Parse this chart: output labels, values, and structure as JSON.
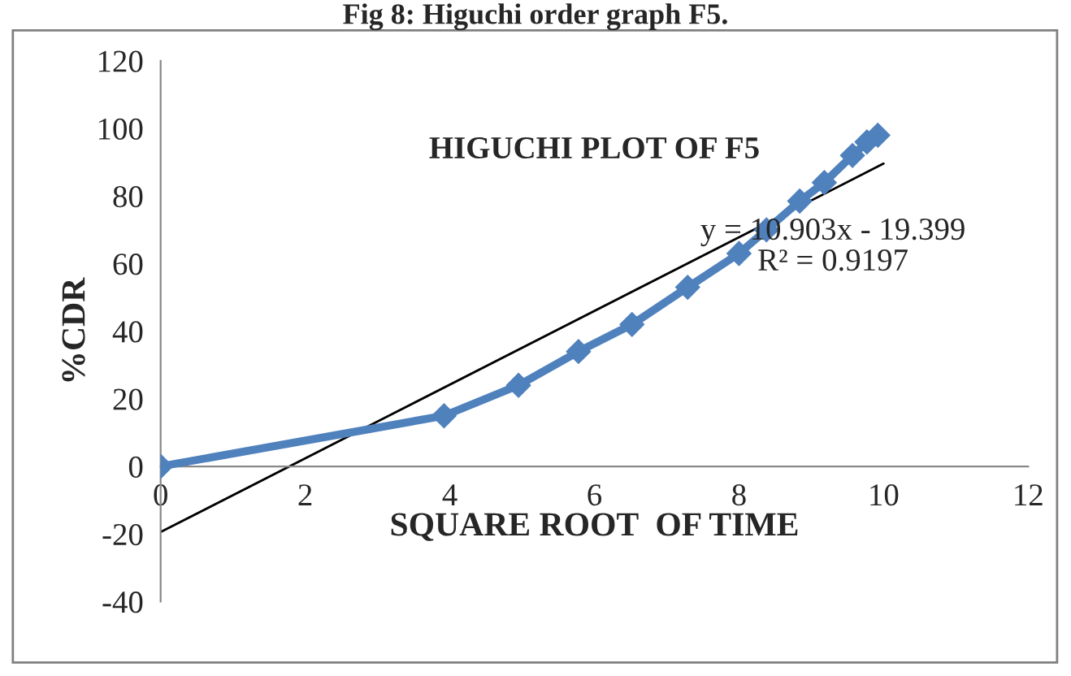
{
  "chart_data": {
    "type": "line",
    "title": "HIGUCHI PLOT OF F5",
    "xlabel": "SQUARE ROOT  OF TIME",
    "ylabel": "%CDR",
    "annotations": [
      "Fig 8: Higuchi order graph F5.",
      "y = 10.903x - 19.399\nR² = 0.9197"
    ],
    "series": [
      {
        "color": "#4f81bd",
        "marker": "diamond",
        "x": [
          0,
          3.92,
          4.95,
          5.78,
          6.52,
          7.29,
          8.0,
          8.38,
          8.84,
          9.18,
          9.57,
          9.77,
          9.92
        ],
        "values": [
          0,
          15,
          24,
          34,
          42,
          53,
          63,
          70,
          78.5,
          84,
          92,
          96,
          98
        ]
      },
      {
        "type": "line",
        "color": "#000000",
        "x": [
          0,
          10
        ],
        "values": [
          -19.4,
          89.6
        ]
      }
    ],
    "xlim": [
      0,
      12
    ],
    "xticks": [
      0,
      2,
      4,
      6,
      8,
      10,
      12
    ],
    "ylim": [
      -40,
      120
    ],
    "yticks": [
      -40,
      -20,
      0,
      20,
      40,
      60,
      80,
      100,
      120
    ],
    "grid": false,
    "legend": false
  }
}
